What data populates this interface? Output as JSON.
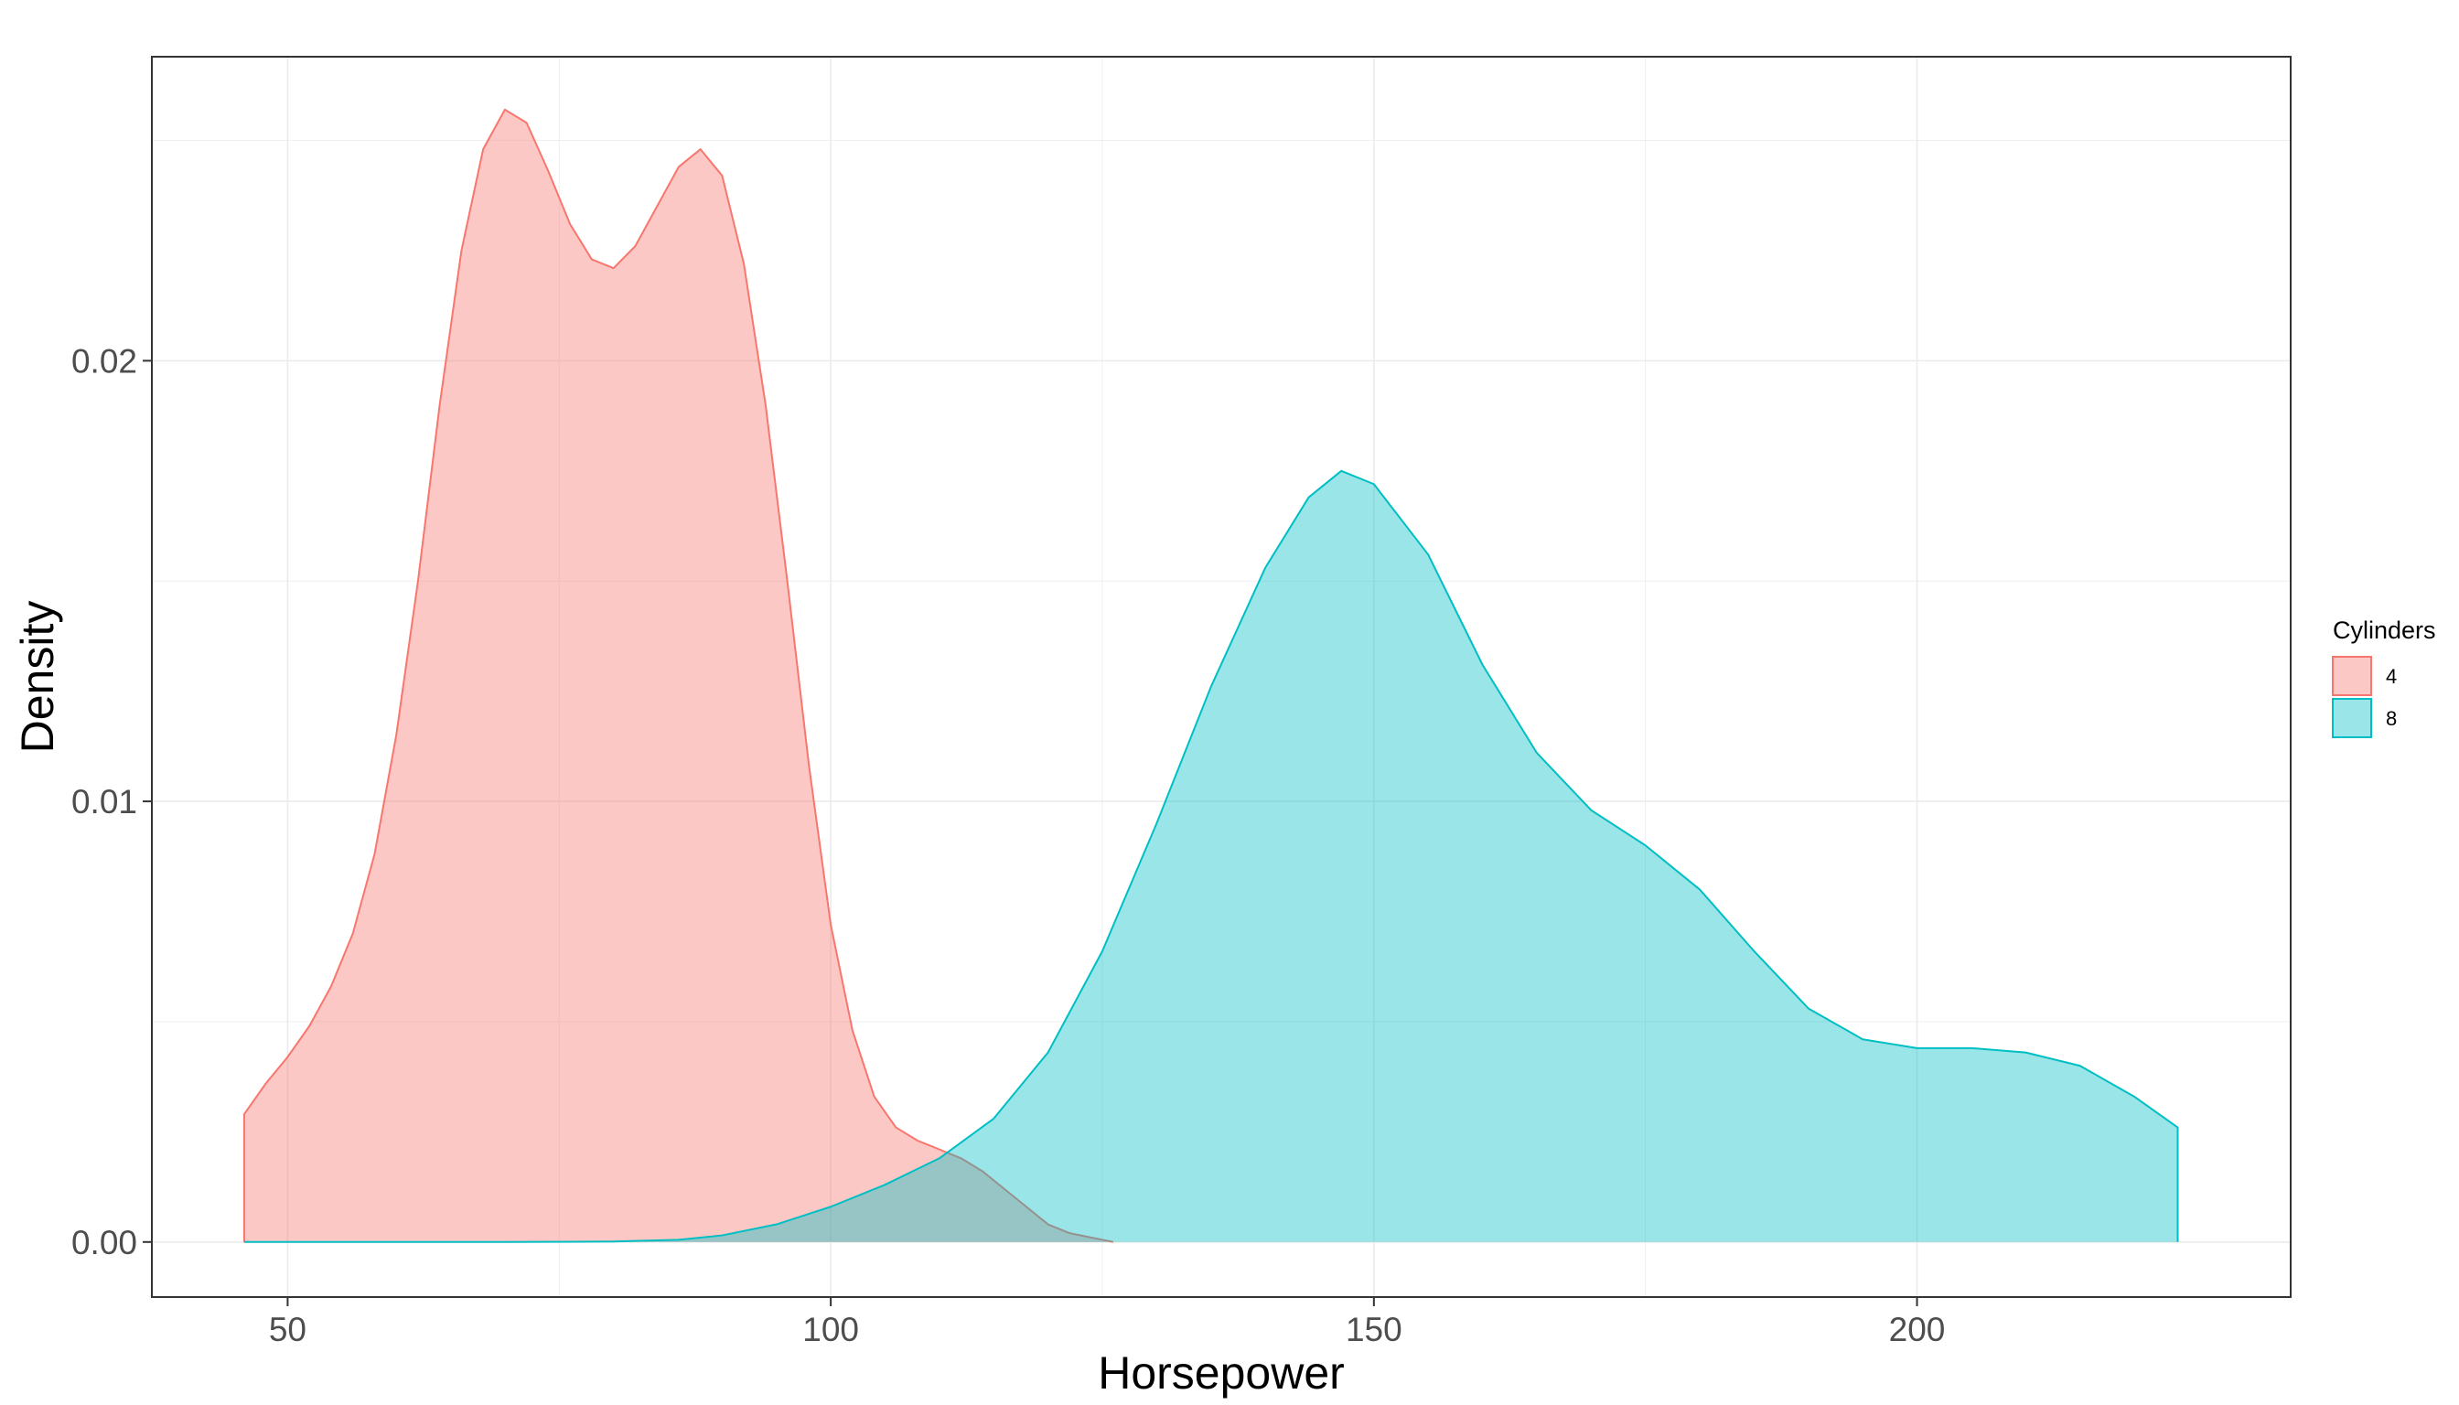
{
  "chart_data": {
    "type": "area",
    "xlabel": "Horsepower",
    "ylabel": "Density",
    "xlim": [
      37.5,
      234.4
    ],
    "ylim": [
      -0.00125,
      0.0269
    ],
    "x_ticks": [
      50,
      100,
      150,
      200
    ],
    "y_ticks": [
      0.0,
      0.01,
      0.02
    ],
    "x_tick_labels": [
      "50",
      "100",
      "150",
      "200"
    ],
    "y_tick_labels": [
      "0.00",
      "0.01",
      "0.02"
    ],
    "grid": true,
    "legend": {
      "title": "Cylinders",
      "position": "right",
      "items": [
        "4",
        "8"
      ]
    },
    "series": [
      {
        "name": "4",
        "color": "#F8766D",
        "fill": "#F8766D",
        "fill_opacity": 0.4,
        "points": [
          [
            46,
            0.0029
          ],
          [
            48,
            0.0036
          ],
          [
            50,
            0.0042
          ],
          [
            52,
            0.0049
          ],
          [
            54,
            0.0058
          ],
          [
            56,
            0.007
          ],
          [
            58,
            0.0088
          ],
          [
            60,
            0.0115
          ],
          [
            62,
            0.015
          ],
          [
            64,
            0.019
          ],
          [
            66,
            0.0225
          ],
          [
            68,
            0.0248
          ],
          [
            70,
            0.0257
          ],
          [
            72,
            0.0254
          ],
          [
            74,
            0.0243
          ],
          [
            76,
            0.0231
          ],
          [
            78,
            0.0223
          ],
          [
            80,
            0.0221
          ],
          [
            82,
            0.0226
          ],
          [
            84,
            0.0235
          ],
          [
            86,
            0.0244
          ],
          [
            88,
            0.0248
          ],
          [
            90,
            0.0242
          ],
          [
            92,
            0.0222
          ],
          [
            94,
            0.019
          ],
          [
            96,
            0.015
          ],
          [
            98,
            0.0108
          ],
          [
            100,
            0.0072
          ],
          [
            102,
            0.0048
          ],
          [
            104,
            0.0033
          ],
          [
            106,
            0.0026
          ],
          [
            108,
            0.0023
          ],
          [
            110,
            0.0021
          ],
          [
            112,
            0.0019
          ],
          [
            114,
            0.0016
          ],
          [
            116,
            0.0012
          ],
          [
            118,
            0.0008
          ],
          [
            120,
            0.0004
          ],
          [
            122,
            0.0002
          ],
          [
            124,
            0.0001
          ],
          [
            126,
            0.0
          ]
        ]
      },
      {
        "name": "8",
        "color": "#00BFC4",
        "fill": "#00BFC4",
        "fill_opacity": 0.4,
        "points": [
          [
            46,
            0.0
          ],
          [
            70,
            0.0
          ],
          [
            80,
            1e-05
          ],
          [
            86,
            5e-05
          ],
          [
            90,
            0.00015
          ],
          [
            95,
            0.0004
          ],
          [
            100,
            0.0008
          ],
          [
            105,
            0.0013
          ],
          [
            110,
            0.0019
          ],
          [
            115,
            0.0028
          ],
          [
            120,
            0.0043
          ],
          [
            125,
            0.0066
          ],
          [
            130,
            0.0095
          ],
          [
            135,
            0.0126
          ],
          [
            140,
            0.0153
          ],
          [
            144,
            0.0169
          ],
          [
            147,
            0.0175
          ],
          [
            150,
            0.0172
          ],
          [
            155,
            0.0156
          ],
          [
            160,
            0.0131
          ],
          [
            165,
            0.0111
          ],
          [
            170,
            0.0098
          ],
          [
            175,
            0.009
          ],
          [
            180,
            0.008
          ],
          [
            185,
            0.0066
          ],
          [
            190,
            0.0053
          ],
          [
            195,
            0.0046
          ],
          [
            200,
            0.0044
          ],
          [
            205,
            0.0044
          ],
          [
            210,
            0.0043
          ],
          [
            215,
            0.004
          ],
          [
            220,
            0.0033
          ],
          [
            224,
            0.0026
          ]
        ]
      }
    ]
  }
}
